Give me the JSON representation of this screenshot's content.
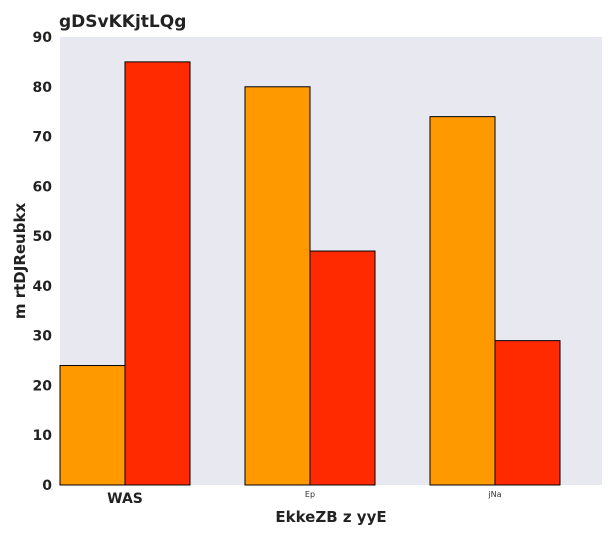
{
  "chart_data": {
    "type": "bar",
    "title": "gDSvKKjtLQg",
    "xlabel": "EkkeZB  z yyE",
    "ylabel": "m rtDJReubkx",
    "categories": [
      "WAS",
      "Ep",
      "jNa"
    ],
    "series": [
      {
        "values": [
          24,
          80,
          74
        ],
        "color": "#FF9900"
      },
      {
        "values": [
          85,
          47,
          29
        ],
        "color": "#FF2A00"
      }
    ],
    "ylim": [
      0,
      90
    ],
    "yticks": [
      0,
      10,
      20,
      30,
      40,
      50,
      60,
      70,
      80,
      90
    ],
    "grid": false,
    "legend": "none",
    "plot_background": "#E8E8F0"
  }
}
